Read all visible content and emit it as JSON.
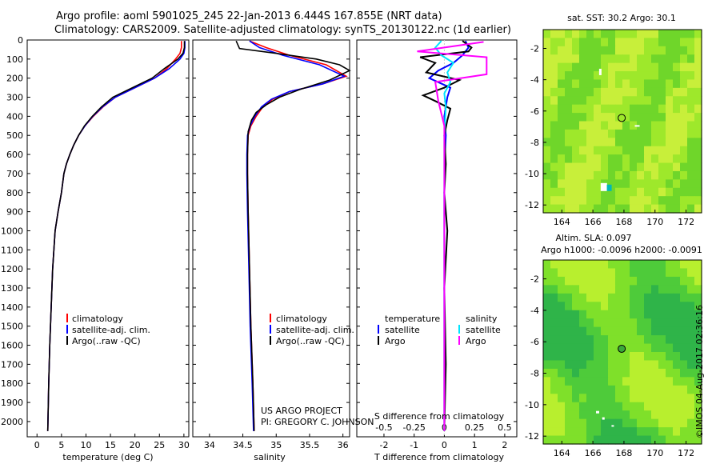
{
  "header": {
    "line1": "Argo profile: aoml 5901025_245 22-Jan-2013 6.444S 167.855E (NRT data)",
    "line2": "Climatology: CARS2009. Satellite-adjusted climatology: synTS_20130122.nc (1d earlier)"
  },
  "colors": {
    "climatology": "#ff0000",
    "satellite": "#0000ff",
    "argo": "#000000",
    "sat_salinity": "#00e5ff",
    "argo_salinity": "#ff00ff",
    "sst_marker": "#00b8b8"
  },
  "credit": {
    "line1": "US ARGO PROJECT",
    "line2": "PI: GREGORY C. JOHNSON"
  },
  "stamp": "©IMOS 04-Aug-2017 02:36:16",
  "chart_data": [
    {
      "type": "line",
      "xlabel": "temperature (deg C)",
      "xlim": [
        -2,
        31
      ],
      "xticks": [
        "0",
        "5",
        "10",
        "15",
        "20",
        "25",
        "30"
      ],
      "ylim": [
        2080,
        0
      ],
      "yticks": [
        "0",
        "100",
        "200",
        "300",
        "400",
        "500",
        "600",
        "700",
        "800",
        "900",
        "1000",
        "1100",
        "1200",
        "1300",
        "1400",
        "1500",
        "1600",
        "1700",
        "1800",
        "1900",
        "2000"
      ],
      "legend": [
        "climatology",
        "satellite-adj. clim.",
        "Argo(..raw -QC)"
      ],
      "series": [
        {
          "name": "climatology",
          "x": [
            29.5,
            29.5,
            29.2,
            28.3,
            26.5,
            24,
            20,
            16,
            13.5,
            11.5,
            9.8,
            8.5,
            7.5,
            6.7,
            6,
            5.5,
            5,
            4.3,
            3.7,
            3.2,
            2.9,
            2.6,
            2.4,
            2.2
          ],
          "y": [
            5,
            40,
            70,
            100,
            150,
            200,
            250,
            300,
            350,
            400,
            450,
            500,
            550,
            600,
            650,
            700,
            800,
            900,
            1000,
            1200,
            1400,
            1600,
            1800,
            2050
          ]
        },
        {
          "name": "satellite-adj. clim.",
          "x": [
            30.2,
            30.2,
            30,
            29.2,
            27,
            24,
            20,
            16,
            13.4,
            11.4,
            9.8,
            8.5,
            7.5,
            6.7,
            6,
            5.5,
            5,
            4.3,
            3.7,
            3.2,
            2.9,
            2.6,
            2.4,
            2.2
          ],
          "y": [
            5,
            40,
            70,
            100,
            150,
            200,
            250,
            300,
            350,
            400,
            450,
            500,
            550,
            600,
            650,
            700,
            800,
            900,
            1000,
            1200,
            1400,
            1600,
            1800,
            2050
          ]
        },
        {
          "name": "Argo(..raw -QC)",
          "x": [
            30.1,
            30.1,
            29.8,
            28.8,
            26,
            23.5,
            19.5,
            15.5,
            13.2,
            11.3,
            9.7,
            8.5,
            7.5,
            6.7,
            6,
            5.5,
            5,
            4.3,
            3.7,
            3.2,
            2.9,
            2.6,
            2.4,
            2.2
          ],
          "y": [
            5,
            40,
            70,
            100,
            150,
            200,
            250,
            300,
            350,
            400,
            450,
            500,
            550,
            600,
            650,
            700,
            800,
            900,
            1000,
            1200,
            1400,
            1600,
            1800,
            2050
          ]
        }
      ]
    },
    {
      "type": "line",
      "xlabel": "salinity",
      "xlim": [
        33.75,
        36.1
      ],
      "xticks": [
        "34",
        "34.5",
        "35",
        "35.5",
        "36"
      ],
      "ylim": [
        2080,
        0
      ],
      "legend": [
        "climatology",
        "satellite-adj. clim.",
        "Argo(..raw -QC)"
      ],
      "series": [
        {
          "name": "climatology",
          "x": [
            34.6,
            34.85,
            35.2,
            35.75,
            36.05,
            35.7,
            35.2,
            34.95,
            34.8,
            34.7,
            34.62,
            34.58,
            34.57,
            34.57,
            34.58,
            34.6,
            34.62,
            34.65,
            34.67
          ],
          "y": [
            5,
            40,
            80,
            130,
            190,
            230,
            270,
            310,
            350,
            400,
            450,
            500,
            600,
            700,
            900,
            1200,
            1500,
            1800,
            2050
          ]
        },
        {
          "name": "satellite-adj. clim.",
          "x": [
            34.6,
            34.75,
            35.1,
            35.65,
            36.02,
            35.7,
            35.2,
            34.93,
            34.78,
            34.68,
            34.61,
            34.57,
            34.56,
            34.56,
            34.57,
            34.59,
            34.61,
            34.64,
            34.66
          ],
          "y": [
            5,
            40,
            80,
            130,
            190,
            230,
            270,
            310,
            350,
            400,
            450,
            500,
            600,
            700,
            900,
            1200,
            1500,
            1800,
            2050
          ]
        },
        {
          "name": "Argo(..raw -QC)",
          "x": [
            34.4,
            34.45,
            35.0,
            35.6,
            35.95,
            36.1,
            35.8,
            35.35,
            35.05,
            34.85,
            34.7,
            34.63,
            34.58,
            34.57,
            34.57,
            34.58,
            34.6,
            34.62,
            34.65,
            34.67
          ],
          "y": [
            5,
            45,
            70,
            100,
            130,
            160,
            210,
            260,
            300,
            340,
            380,
            420,
            480,
            600,
            700,
            900,
            1200,
            1500,
            1800,
            2050
          ]
        }
      ]
    },
    {
      "type": "line",
      "xlabel": "T difference from climatology",
      "x2label": "S difference from climatology",
      "xlim": [
        -2.9,
        2.4
      ],
      "xticks": [
        "-2",
        "-1",
        "0",
        "1",
        "2"
      ],
      "x2ticks": [
        "-0.5",
        "-0.25",
        "0",
        "0.25",
        "0.5"
      ],
      "ylim": [
        2080,
        0
      ],
      "legend": [
        "temperature",
        "satellite",
        "Argo",
        "salinity",
        "satellite",
        "Argo"
      ],
      "series": [
        {
          "name": "satellite",
          "x": [
            0.7,
            0.8,
            0.6,
            0.3,
            -0.2,
            -0.5,
            0.2,
            0.1,
            0.0,
            0.05,
            0.02,
            0.0,
            0.0,
            0.0,
            0.0,
            0.0
          ],
          "y": [
            5,
            40,
            80,
            120,
            160,
            200,
            250,
            300,
            400,
            500,
            600,
            800,
            1000,
            1400,
            1800,
            2050
          ]
        },
        {
          "name": "Argo",
          "x": [
            0.6,
            0.9,
            0.8,
            -0.8,
            -0.3,
            -0.6,
            0.5,
            0.0,
            -0.7,
            -0.3,
            0.2,
            0.1,
            0.0,
            0.05,
            0.0,
            0.1,
            0.0,
            0.05,
            0.0
          ],
          "y": [
            5,
            40,
            60,
            90,
            120,
            170,
            210,
            250,
            290,
            320,
            360,
            420,
            500,
            650,
            800,
            1000,
            1300,
            1700,
            2050
          ]
        },
        {
          "name": "satellite",
          "x": [
            -0.1,
            -0.3,
            -0.1,
            0.3,
            0.1,
            0.2,
            0.0,
            0.05,
            0.0,
            0.0,
            0.0,
            0.0,
            0.0
          ],
          "y": [
            5,
            40,
            80,
            120,
            170,
            220,
            280,
            350,
            500,
            700,
            1000,
            1500,
            2050
          ]
        },
        {
          "name": "Argo",
          "x": [
            1.3,
            -0.9,
            1.4,
            1.4,
            -0.3,
            -0.2,
            0.0,
            0.0,
            0.0
          ],
          "y": [
            10,
            60,
            90,
            180,
            220,
            320,
            450,
            900,
            2050
          ]
        }
      ]
    },
    {
      "type": "heatmap",
      "title": "sat. SST: 30.2 Argo: 30.1",
      "xticks": [
        "164",
        "166",
        "168",
        "170",
        "172"
      ],
      "yticks": [
        "-2",
        "-4",
        "-6",
        "-8",
        "-10",
        "-12"
      ],
      "xlim": [
        162.8,
        173
      ],
      "ylim": [
        -12.5,
        -0.8
      ],
      "marker": {
        "lon": 167.855,
        "lat": -6.444
      }
    },
    {
      "type": "heatmap",
      "title": "Altim. SLA: 0.097",
      "subtitle": "Argo h1000: -0.0096 h2000: -0.0091",
      "xticks": [
        "164",
        "166",
        "168",
        "170",
        "172"
      ],
      "yticks": [
        "-2",
        "-4",
        "-6",
        "-8",
        "-10",
        "-12"
      ],
      "xlim": [
        162.8,
        173
      ],
      "ylim": [
        -12.5,
        -0.8
      ],
      "marker": {
        "lon": 167.855,
        "lat": -6.444
      }
    }
  ]
}
